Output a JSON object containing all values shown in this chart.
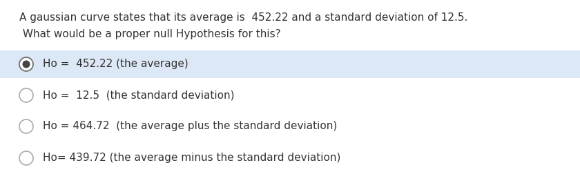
{
  "question_line1": "A gaussian curve states that its average is  452.22 and a standard deviation of 12.5.",
  "question_line2": " What would be a proper null Hypothesis for this?",
  "options": [
    {
      "text": "Ho =  452.22 (the average)",
      "selected": true
    },
    {
      "text": "Ho =  12.5  (the standard deviation)",
      "selected": false
    },
    {
      "text": "Ho = 464.72  (the average plus the standard deviation)",
      "selected": false
    },
    {
      "text": "Ho= 439.72 (the average minus the standard deviation)",
      "selected": false
    }
  ],
  "selected_bg_color": "#dce8f5",
  "unselected_bg_color": "#ffffff",
  "page_bg_color": "#ffffff",
  "text_color": "#333333",
  "circle_edge_selected": "#666666",
  "circle_fill_selected": "#444444",
  "circle_edge_unselected": "#aaaaaa",
  "circle_fill_unselected": "#ffffff",
  "font_size_question": 11.0,
  "font_size_option": 11.0,
  "fig_width": 8.4,
  "fig_height": 2.52,
  "dpi": 100
}
